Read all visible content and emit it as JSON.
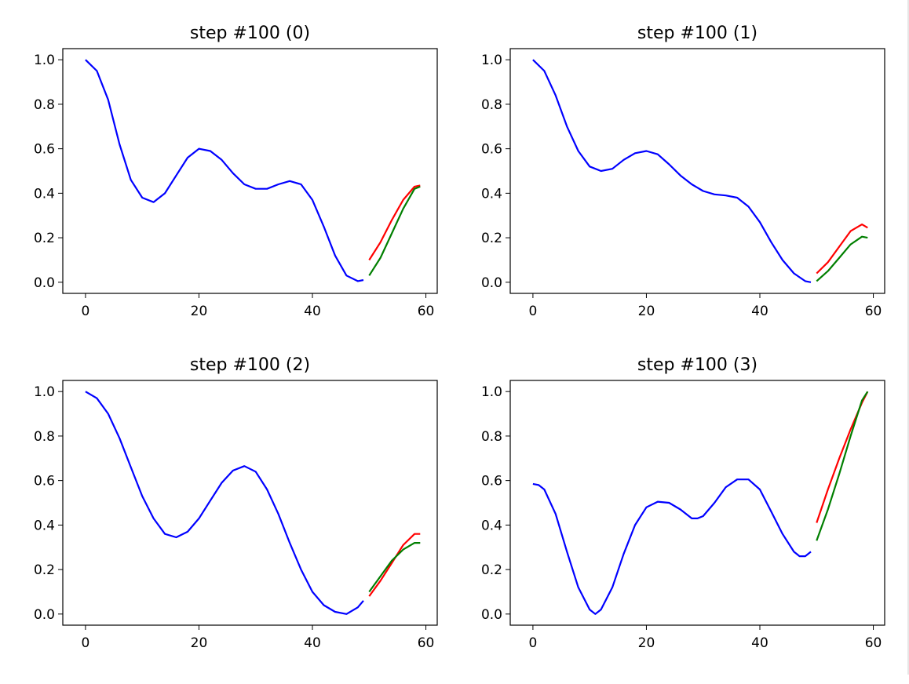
{
  "chart_data": [
    {
      "type": "line",
      "title": "step #100 (0)",
      "xlim": [
        -4.0,
        62.0
      ],
      "ylim": [
        -0.05,
        1.05
      ],
      "xticks": [
        0,
        20,
        40,
        60
      ],
      "yticks": [
        0.0,
        0.2,
        0.4,
        0.6,
        0.8,
        1.0
      ],
      "xticklabels": [
        "0",
        "20",
        "40",
        "60"
      ],
      "yticklabels": [
        "0.0",
        "0.2",
        "0.4",
        "0.6",
        "0.8",
        "1.0"
      ],
      "series": [
        {
          "color": "#0000ff",
          "points": [
            [
              0,
              1.0
            ],
            [
              2,
              0.95
            ],
            [
              4,
              0.82
            ],
            [
              6,
              0.62
            ],
            [
              8,
              0.46
            ],
            [
              10,
              0.38
            ],
            [
              12,
              0.36
            ],
            [
              14,
              0.4
            ],
            [
              16,
              0.48
            ],
            [
              18,
              0.56
            ],
            [
              20,
              0.6
            ],
            [
              22,
              0.59
            ],
            [
              24,
              0.55
            ],
            [
              26,
              0.49
            ],
            [
              28,
              0.44
            ],
            [
              30,
              0.42
            ],
            [
              32,
              0.42
            ],
            [
              34,
              0.44
            ],
            [
              36,
              0.455
            ],
            [
              38,
              0.44
            ],
            [
              40,
              0.37
            ],
            [
              42,
              0.25
            ],
            [
              44,
              0.12
            ],
            [
              46,
              0.03
            ],
            [
              48,
              0.005
            ],
            [
              49,
              0.01
            ]
          ]
        },
        {
          "color": "#ff0000",
          "points": [
            [
              50,
              0.1
            ],
            [
              52,
              0.18
            ],
            [
              54,
              0.28
            ],
            [
              56,
              0.37
            ],
            [
              58,
              0.43
            ],
            [
              59,
              0.435
            ]
          ]
        },
        {
          "color": "#007f00",
          "points": [
            [
              50,
              0.03
            ],
            [
              52,
              0.11
            ],
            [
              54,
              0.22
            ],
            [
              56,
              0.33
            ],
            [
              58,
              0.42
            ],
            [
              59,
              0.43
            ]
          ]
        }
      ]
    },
    {
      "type": "line",
      "title": "step #100 (1)",
      "xlim": [
        -4.0,
        62.0
      ],
      "ylim": [
        -0.05,
        1.05
      ],
      "xticks": [
        0,
        20,
        40,
        60
      ],
      "yticks": [
        0.0,
        0.2,
        0.4,
        0.6,
        0.8,
        1.0
      ],
      "xticklabels": [
        "0",
        "20",
        "40",
        "60"
      ],
      "yticklabels": [
        "0.0",
        "0.2",
        "0.4",
        "0.6",
        "0.8",
        "1.0"
      ],
      "series": [
        {
          "color": "#0000ff",
          "points": [
            [
              0,
              1.0
            ],
            [
              2,
              0.95
            ],
            [
              4,
              0.84
            ],
            [
              6,
              0.7
            ],
            [
              8,
              0.59
            ],
            [
              10,
              0.52
            ],
            [
              12,
              0.5
            ],
            [
              14,
              0.51
            ],
            [
              16,
              0.55
            ],
            [
              18,
              0.58
            ],
            [
              20,
              0.59
            ],
            [
              22,
              0.575
            ],
            [
              24,
              0.53
            ],
            [
              26,
              0.48
            ],
            [
              28,
              0.44
            ],
            [
              30,
              0.41
            ],
            [
              32,
              0.395
            ],
            [
              34,
              0.39
            ],
            [
              36,
              0.38
            ],
            [
              38,
              0.34
            ],
            [
              40,
              0.27
            ],
            [
              42,
              0.18
            ],
            [
              44,
              0.1
            ],
            [
              46,
              0.04
            ],
            [
              48,
              0.005
            ],
            [
              49,
              0.0
            ]
          ]
        },
        {
          "color": "#ff0000",
          "points": [
            [
              50,
              0.04
            ],
            [
              52,
              0.09
            ],
            [
              54,
              0.16
            ],
            [
              56,
              0.23
            ],
            [
              58,
              0.26
            ],
            [
              59,
              0.245
            ]
          ]
        },
        {
          "color": "#007f00",
          "points": [
            [
              50,
              0.005
            ],
            [
              52,
              0.05
            ],
            [
              54,
              0.11
            ],
            [
              56,
              0.17
            ],
            [
              58,
              0.205
            ],
            [
              59,
              0.2
            ]
          ]
        }
      ]
    },
    {
      "type": "line",
      "title": "step #100 (2)",
      "xlim": [
        -4.0,
        62.0
      ],
      "ylim": [
        -0.05,
        1.05
      ],
      "xticks": [
        0,
        20,
        40,
        60
      ],
      "yticks": [
        0.0,
        0.2,
        0.4,
        0.6,
        0.8,
        1.0
      ],
      "xticklabels": [
        "0",
        "20",
        "40",
        "60"
      ],
      "yticklabels": [
        "0.0",
        "0.2",
        "0.4",
        "0.6",
        "0.8",
        "1.0"
      ],
      "series": [
        {
          "color": "#0000ff",
          "points": [
            [
              0,
              1.0
            ],
            [
              2,
              0.97
            ],
            [
              4,
              0.9
            ],
            [
              6,
              0.79
            ],
            [
              8,
              0.66
            ],
            [
              10,
              0.53
            ],
            [
              12,
              0.43
            ],
            [
              14,
              0.36
            ],
            [
              16,
              0.345
            ],
            [
              18,
              0.37
            ],
            [
              20,
              0.43
            ],
            [
              22,
              0.51
            ],
            [
              24,
              0.59
            ],
            [
              26,
              0.645
            ],
            [
              28,
              0.665
            ],
            [
              30,
              0.64
            ],
            [
              32,
              0.56
            ],
            [
              34,
              0.45
            ],
            [
              36,
              0.32
            ],
            [
              38,
              0.2
            ],
            [
              40,
              0.1
            ],
            [
              42,
              0.04
            ],
            [
              44,
              0.01
            ],
            [
              46,
              0.0
            ],
            [
              48,
              0.03
            ],
            [
              49,
              0.06
            ]
          ]
        },
        {
          "color": "#ff0000",
          "points": [
            [
              50,
              0.08
            ],
            [
              52,
              0.15
            ],
            [
              54,
              0.23
            ],
            [
              56,
              0.31
            ],
            [
              58,
              0.36
            ],
            [
              59,
              0.36
            ]
          ]
        },
        {
          "color": "#007f00",
          "points": [
            [
              50,
              0.1
            ],
            [
              52,
              0.17
            ],
            [
              54,
              0.24
            ],
            [
              56,
              0.29
            ],
            [
              58,
              0.32
            ],
            [
              59,
              0.32
            ]
          ]
        }
      ]
    },
    {
      "type": "line",
      "title": "step #100 (3)",
      "xlim": [
        -4.0,
        62.0
      ],
      "ylim": [
        -0.05,
        1.05
      ],
      "xticks": [
        0,
        20,
        40,
        60
      ],
      "yticks": [
        0.0,
        0.2,
        0.4,
        0.6,
        0.8,
        1.0
      ],
      "xticklabels": [
        "0",
        "20",
        "40",
        "60"
      ],
      "yticklabels": [
        "0.0",
        "0.2",
        "0.4",
        "0.6",
        "0.8",
        "1.0"
      ],
      "series": [
        {
          "color": "#0000ff",
          "points": [
            [
              0,
              0.585
            ],
            [
              1,
              0.58
            ],
            [
              2,
              0.56
            ],
            [
              4,
              0.45
            ],
            [
              6,
              0.28
            ],
            [
              8,
              0.12
            ],
            [
              10,
              0.02
            ],
            [
              11,
              0.0
            ],
            [
              12,
              0.02
            ],
            [
              14,
              0.12
            ],
            [
              16,
              0.27
            ],
            [
              18,
              0.4
            ],
            [
              20,
              0.48
            ],
            [
              22,
              0.505
            ],
            [
              24,
              0.5
            ],
            [
              26,
              0.47
            ],
            [
              28,
              0.43
            ],
            [
              29,
              0.43
            ],
            [
              30,
              0.44
            ],
            [
              32,
              0.5
            ],
            [
              34,
              0.57
            ],
            [
              36,
              0.605
            ],
            [
              38,
              0.605
            ],
            [
              40,
              0.56
            ],
            [
              42,
              0.46
            ],
            [
              44,
              0.36
            ],
            [
              46,
              0.28
            ],
            [
              47,
              0.26
            ],
            [
              48,
              0.26
            ],
            [
              49,
              0.28
            ]
          ]
        },
        {
          "color": "#ff0000",
          "points": [
            [
              50,
              0.41
            ],
            [
              52,
              0.56
            ],
            [
              54,
              0.7
            ],
            [
              56,
              0.83
            ],
            [
              58,
              0.95
            ],
            [
              59,
              1.0
            ]
          ]
        },
        {
          "color": "#007f00",
          "points": [
            [
              50,
              0.33
            ],
            [
              52,
              0.47
            ],
            [
              54,
              0.63
            ],
            [
              56,
              0.8
            ],
            [
              58,
              0.96
            ],
            [
              59,
              1.0
            ]
          ]
        }
      ]
    }
  ]
}
